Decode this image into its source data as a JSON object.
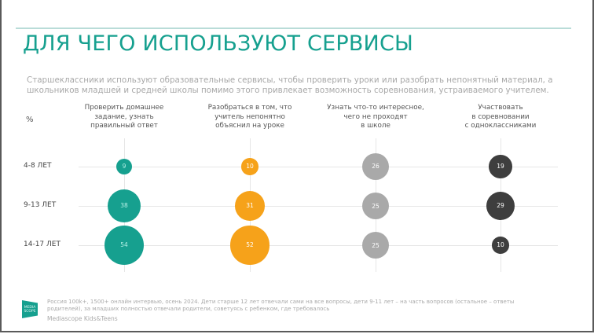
{
  "slide": {
    "title": "ДЛЯ ЧЕГО ИСПОЛЬЗУЮТ СЕРВИСЫ",
    "subtitle": "Старшеклассники используют образовательные сервисы, чтобы проверить уроки или разобрать непонятный материал, а школьников младшей и средней школы помимо этого привлекает возможность соревнования, устраиваемого учителем.",
    "unit_label": "%",
    "footer": {
      "logo_text": "MEDIA SCOPE",
      "note": "Россия 100k+, 1500+ онлайн интервью, осень 2024. Дети старше 12 лет отвечали сами на все вопросы, дети 9-11 лет – на часть вопросов (остальное – ответы родителей), за младших полностью отвечали родители, советуясь с ребенком, где требовалось",
      "brand": "Mediascope Kids&Teens"
    },
    "colors": {
      "accent": "#16a08f",
      "orange": "#f6a21a",
      "gray": "#a9a9a9",
      "dark": "#3e3e3e",
      "grid": "#e6e6e6"
    }
  },
  "chart_data": {
    "type": "bubble-matrix",
    "title": "ДЛЯ ЧЕГО ИСПОЛЬЗУЮТ СЕРВИСЫ",
    "unit": "%",
    "categories": [
      "Проверить домашнее задание, узнать правильный ответ",
      "Разобраться в том, что учитель непонятно объяснил на уроке",
      "Узнать что-то интересное, чего не проходят в школе",
      "Участвовать в соревновании с одноклассниками"
    ],
    "rows": [
      "4-8 ЛЕТ",
      "9-13 ЛЕТ",
      "14-17 ЛЕТ"
    ],
    "series": [
      {
        "name": "4-8 ЛЕТ",
        "values": [
          9,
          10,
          26,
          19
        ]
      },
      {
        "name": "9-13 ЛЕТ",
        "values": [
          38,
          31,
          25,
          29
        ]
      },
      {
        "name": "14-17 ЛЕТ",
        "values": [
          54,
          52,
          25,
          10
        ]
      }
    ],
    "column_colors": [
      "#16a08f",
      "#f6a21a",
      "#a9a9a9",
      "#3e3e3e"
    ],
    "grid": true,
    "legend": "none"
  },
  "columns": [
    {
      "label_lines": [
        "Проверить домашнее",
        "задание, узнать",
        "правильный ответ"
      ]
    },
    {
      "label_lines": [
        "Разобраться в том, что",
        "учитель непонятно",
        "объяснил на уроке"
      ]
    },
    {
      "label_lines": [
        "Узнать что-то интересное,",
        "чего не проходят",
        "в школе"
      ]
    },
    {
      "label_lines": [
        "Участвовать",
        "в соревновании",
        "с одноклассниками"
      ]
    }
  ],
  "row_labels": [
    "4-8 ЛЕТ",
    "9-13 ЛЕТ",
    "14-17 ЛЕТ"
  ],
  "cells": [
    [
      "9",
      "10",
      "26",
      "19"
    ],
    [
      "38",
      "31",
      "25",
      "29"
    ],
    [
      "54",
      "52",
      "25",
      "10"
    ]
  ]
}
